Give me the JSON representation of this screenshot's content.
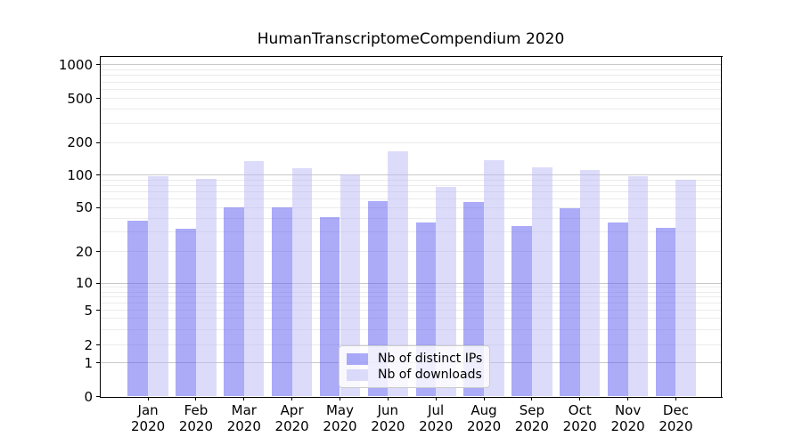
{
  "chart_data": {
    "type": "bar",
    "title": "HumanTranscriptomeCompendium 2020",
    "categories": [
      "Jan 2020",
      "Feb 2020",
      "Mar 2020",
      "Apr 2020",
      "May 2020",
      "Jun 2020",
      "Jul 2020",
      "Aug 2020",
      "Sep 2020",
      "Oct 2020",
      "Nov 2020",
      "Dec 2020"
    ],
    "series": [
      {
        "name": "Nb of distinct IPs",
        "fill": "rgba(88,88,242,0.5)",
        "approx_hex": "#ababf8",
        "values": [
          38,
          32,
          50,
          50,
          41,
          57,
          37,
          56,
          34,
          49,
          37,
          33
        ]
      },
      {
        "name": "Nb of downloads",
        "fill": "rgba(185,185,245,0.5)",
        "approx_hex": "#dcdcfa",
        "values": [
          98,
          93,
          135,
          115,
          102,
          165,
          78,
          137,
          117,
          111,
          98,
          90
        ]
      }
    ],
    "xlabel": "",
    "ylabel": "",
    "y_axis": {
      "scale": "symlog",
      "ticks": [
        0,
        1,
        2,
        5,
        10,
        20,
        50,
        100,
        200,
        500,
        1000
      ],
      "range": [
        0,
        1000
      ]
    },
    "grid": "horizontal major (1,10,100,1000) and minor log gridlines",
    "legend_position": "lower center",
    "colors": {
      "bar_dark": "#ababf8",
      "bar_light": "#dcdcfa",
      "grid_major": "#c9c9c9",
      "grid_minor": "#ebebeb",
      "axis": "#000000"
    }
  }
}
